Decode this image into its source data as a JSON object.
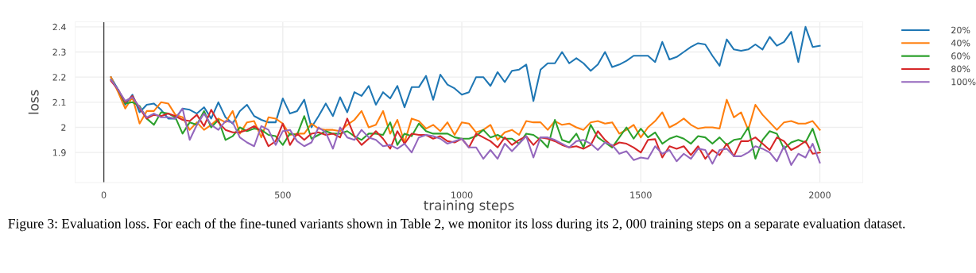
{
  "chart_data": {
    "type": "line",
    "xlabel": "training steps",
    "ylabel": "loss",
    "x": [
      20,
      40,
      60,
      80,
      100,
      120,
      140,
      160,
      180,
      200,
      220,
      240,
      260,
      280,
      300,
      320,
      340,
      360,
      380,
      400,
      420,
      440,
      460,
      480,
      500,
      520,
      540,
      560,
      580,
      600,
      620,
      640,
      660,
      680,
      700,
      720,
      740,
      760,
      780,
      800,
      820,
      840,
      860,
      880,
      900,
      920,
      940,
      960,
      980,
      1000,
      1020,
      1040,
      1060,
      1080,
      1100,
      1120,
      1140,
      1160,
      1180,
      1200,
      1220,
      1240,
      1260,
      1280,
      1300,
      1320,
      1340,
      1360,
      1380,
      1400,
      1420,
      1440,
      1460,
      1480,
      1500,
      1520,
      1540,
      1560,
      1580,
      1600,
      1620,
      1640,
      1660,
      1680,
      1700,
      1720,
      1740,
      1760,
      1780,
      1800,
      1820,
      1840,
      1860,
      1880,
      1900,
      1920,
      1940,
      1960,
      1980,
      2000
    ],
    "series": [
      {
        "name": "20%",
        "color": "#1f77b4",
        "values": [
          2.2,
          2.15,
          2.09,
          2.13,
          2.06,
          2.09,
          2.095,
          2.07,
          2.035,
          2.035,
          2.075,
          2.07,
          2.055,
          2.08,
          2.035,
          2.1,
          2.04,
          2.015,
          2.065,
          2.09,
          2.045,
          2.03,
          2.02,
          2.02,
          2.115,
          2.055,
          2.065,
          2.11,
          2.0,
          2.045,
          2.095,
          2.045,
          2.12,
          2.06,
          2.14,
          2.125,
          2.165,
          2.09,
          2.14,
          2.115,
          2.165,
          2.08,
          2.16,
          2.16,
          2.205,
          2.11,
          2.21,
          2.17,
          2.155,
          2.13,
          2.14,
          2.2,
          2.2,
          2.165,
          2.22,
          2.18,
          2.225,
          2.23,
          2.25,
          2.105,
          2.23,
          2.255,
          2.255,
          2.3,
          2.255,
          2.275,
          2.255,
          2.225,
          2.25,
          2.3,
          2.24,
          2.25,
          2.265,
          2.285,
          2.285,
          2.285,
          2.26,
          2.34,
          2.27,
          2.28,
          2.3,
          2.32,
          2.335,
          2.33,
          2.285,
          2.245,
          2.35,
          2.31,
          2.305,
          2.31,
          2.33,
          2.31,
          2.36,
          2.325,
          2.34,
          2.38,
          2.26,
          2.4,
          2.32,
          2.325
        ]
      },
      {
        "name": "40%",
        "color": "#ff7f0e",
        "values": [
          2.2,
          2.14,
          2.075,
          2.12,
          2.015,
          2.065,
          2.065,
          2.1,
          2.095,
          2.05,
          2.04,
          1.99,
          2.02,
          1.99,
          2.01,
          2.035,
          2.02,
          2.065,
          1.975,
          2.02,
          2.025,
          1.96,
          2.04,
          2.035,
          2.015,
          1.97,
          1.975,
          1.975,
          2.015,
          1.995,
          1.99,
          1.99,
          1.985,
          2.01,
          2.03,
          2.065,
          2.0,
          2.01,
          2.065,
          1.975,
          2.03,
          1.94,
          2.035,
          2.025,
          1.995,
          2.01,
          1.985,
          2.02,
          1.97,
          2.02,
          2.015,
          1.98,
          1.99,
          2.01,
          1.95,
          1.98,
          1.99,
          1.97,
          2.025,
          2.02,
          2.02,
          1.99,
          2.025,
          2.01,
          2.015,
          2.0,
          1.99,
          2.02,
          2.025,
          2.015,
          2.02,
          1.975,
          1.99,
          2.01,
          1.96,
          2.0,
          2.025,
          2.06,
          2.0,
          2.015,
          2.035,
          2.01,
          1.995,
          2.0,
          2.0,
          1.995,
          2.11,
          2.04,
          2.06,
          1.99,
          2.09,
          2.05,
          2.02,
          1.99,
          2.02,
          2.025,
          2.015,
          2.015,
          2.025,
          1.99
        ]
      },
      {
        "name": "60%",
        "color": "#2ca02c",
        "values": [
          2.19,
          2.15,
          2.095,
          2.1,
          2.085,
          2.035,
          2.01,
          2.06,
          2.055,
          2.04,
          1.975,
          2.02,
          2.01,
          2.065,
          2.0,
          2.03,
          1.95,
          1.965,
          2.0,
          1.985,
          1.995,
          1.99,
          1.97,
          1.965,
          1.93,
          1.975,
          1.97,
          2.045,
          1.955,
          1.97,
          1.985,
          1.975,
          1.975,
          1.985,
          1.965,
          1.95,
          1.975,
          1.975,
          1.97,
          2.02,
          1.93,
          1.975,
          1.965,
          2.015,
          1.985,
          1.975,
          1.975,
          1.975,
          1.96,
          1.955,
          1.955,
          1.965,
          1.99,
          1.96,
          1.97,
          1.955,
          1.955,
          1.935,
          1.975,
          1.97,
          1.95,
          1.92,
          2.03,
          1.95,
          1.94,
          1.975,
          1.92,
          2.01,
          1.96,
          1.94,
          1.92,
          1.96,
          2.0,
          1.955,
          1.995,
          1.96,
          1.98,
          1.935,
          1.955,
          1.965,
          1.955,
          1.935,
          1.965,
          1.96,
          1.935,
          1.96,
          1.93,
          1.95,
          1.955,
          2.0,
          1.875,
          1.95,
          1.985,
          1.975,
          1.915,
          1.94,
          1.95,
          1.94,
          1.995,
          1.91
        ]
      },
      {
        "name": "80%",
        "color": "#d62728",
        "values": [
          2.185,
          2.15,
          2.1,
          2.125,
          2.075,
          2.035,
          2.05,
          2.045,
          2.055,
          2.045,
          2.03,
          2.025,
          2.05,
          2.005,
          2.07,
          2.02,
          1.99,
          1.98,
          1.98,
          1.99,
          2.005,
          1.985,
          1.925,
          1.945,
          2.015,
          1.93,
          1.975,
          1.95,
          1.975,
          1.98,
          1.97,
          1.975,
          1.96,
          2.035,
          1.965,
          1.93,
          1.955,
          1.985,
          1.955,
          1.915,
          1.985,
          1.935,
          1.975,
          1.97,
          1.97,
          1.955,
          1.965,
          1.945,
          1.94,
          1.955,
          1.92,
          1.975,
          1.96,
          1.945,
          1.92,
          1.96,
          1.93,
          1.95,
          1.965,
          1.93,
          1.96,
          1.955,
          1.945,
          1.93,
          1.92,
          1.925,
          1.915,
          1.93,
          1.985,
          1.95,
          1.925,
          1.94,
          1.935,
          1.92,
          1.9,
          1.95,
          1.953,
          1.88,
          1.925,
          1.915,
          1.925,
          1.89,
          1.925,
          1.875,
          1.91,
          1.89,
          1.935,
          1.885,
          1.945,
          1.945,
          1.96,
          1.935,
          1.91,
          1.96,
          1.945,
          1.91,
          1.925,
          1.945,
          1.895,
          1.9
        ]
      },
      {
        "name": "100%",
        "color": "#9467bd",
        "values": [
          2.19,
          2.15,
          2.105,
          2.12,
          2.08,
          2.04,
          2.055,
          2.04,
          2.04,
          2.035,
          2.075,
          1.95,
          2.01,
          2.055,
          2.01,
          1.99,
          2.025,
          2.02,
          1.96,
          1.94,
          1.925,
          2.005,
          1.99,
          1.93,
          1.985,
          1.99,
          1.945,
          1.925,
          1.94,
          2.0,
          1.98,
          1.915,
          2.0,
          1.96,
          1.95,
          1.99,
          1.96,
          1.95,
          1.925,
          1.93,
          1.915,
          1.935,
          1.9,
          1.96,
          1.97,
          1.965,
          1.955,
          1.935,
          1.945,
          1.955,
          1.92,
          1.92,
          1.875,
          1.91,
          1.875,
          1.935,
          1.905,
          1.935,
          1.965,
          1.88,
          1.96,
          1.96,
          1.95,
          1.935,
          1.92,
          1.945,
          1.95,
          1.935,
          1.91,
          1.94,
          1.93,
          1.895,
          1.905,
          1.87,
          1.88,
          1.875,
          1.925,
          1.895,
          1.91,
          1.865,
          1.895,
          1.875,
          1.915,
          1.91,
          1.855,
          1.91,
          1.915,
          1.885,
          1.885,
          1.9,
          1.925,
          1.915,
          1.9,
          1.865,
          1.925,
          1.85,
          1.895,
          1.88,
          1.935,
          1.86
        ]
      }
    ],
    "xlim": [
      -80,
      2120
    ],
    "ylim": [
      1.78,
      2.42
    ],
    "xticks": [
      0,
      500,
      1000,
      1500,
      2000
    ],
    "yticks": [
      1.9,
      2,
      2.1,
      2.2,
      2.3,
      2.4
    ],
    "ref_lines": [
      {
        "axis": "x",
        "value": 0,
        "color": "#444444"
      }
    ],
    "grid": true,
    "legend": "top right",
    "marker": "none",
    "line_style": "solid",
    "annotations": [
      "Figure 3: Evaluation loss. For each of the fine-tuned variants shown in Table 2, we monitor its loss during its 2, 000 training steps on a separate evaluation dataset."
    ]
  }
}
